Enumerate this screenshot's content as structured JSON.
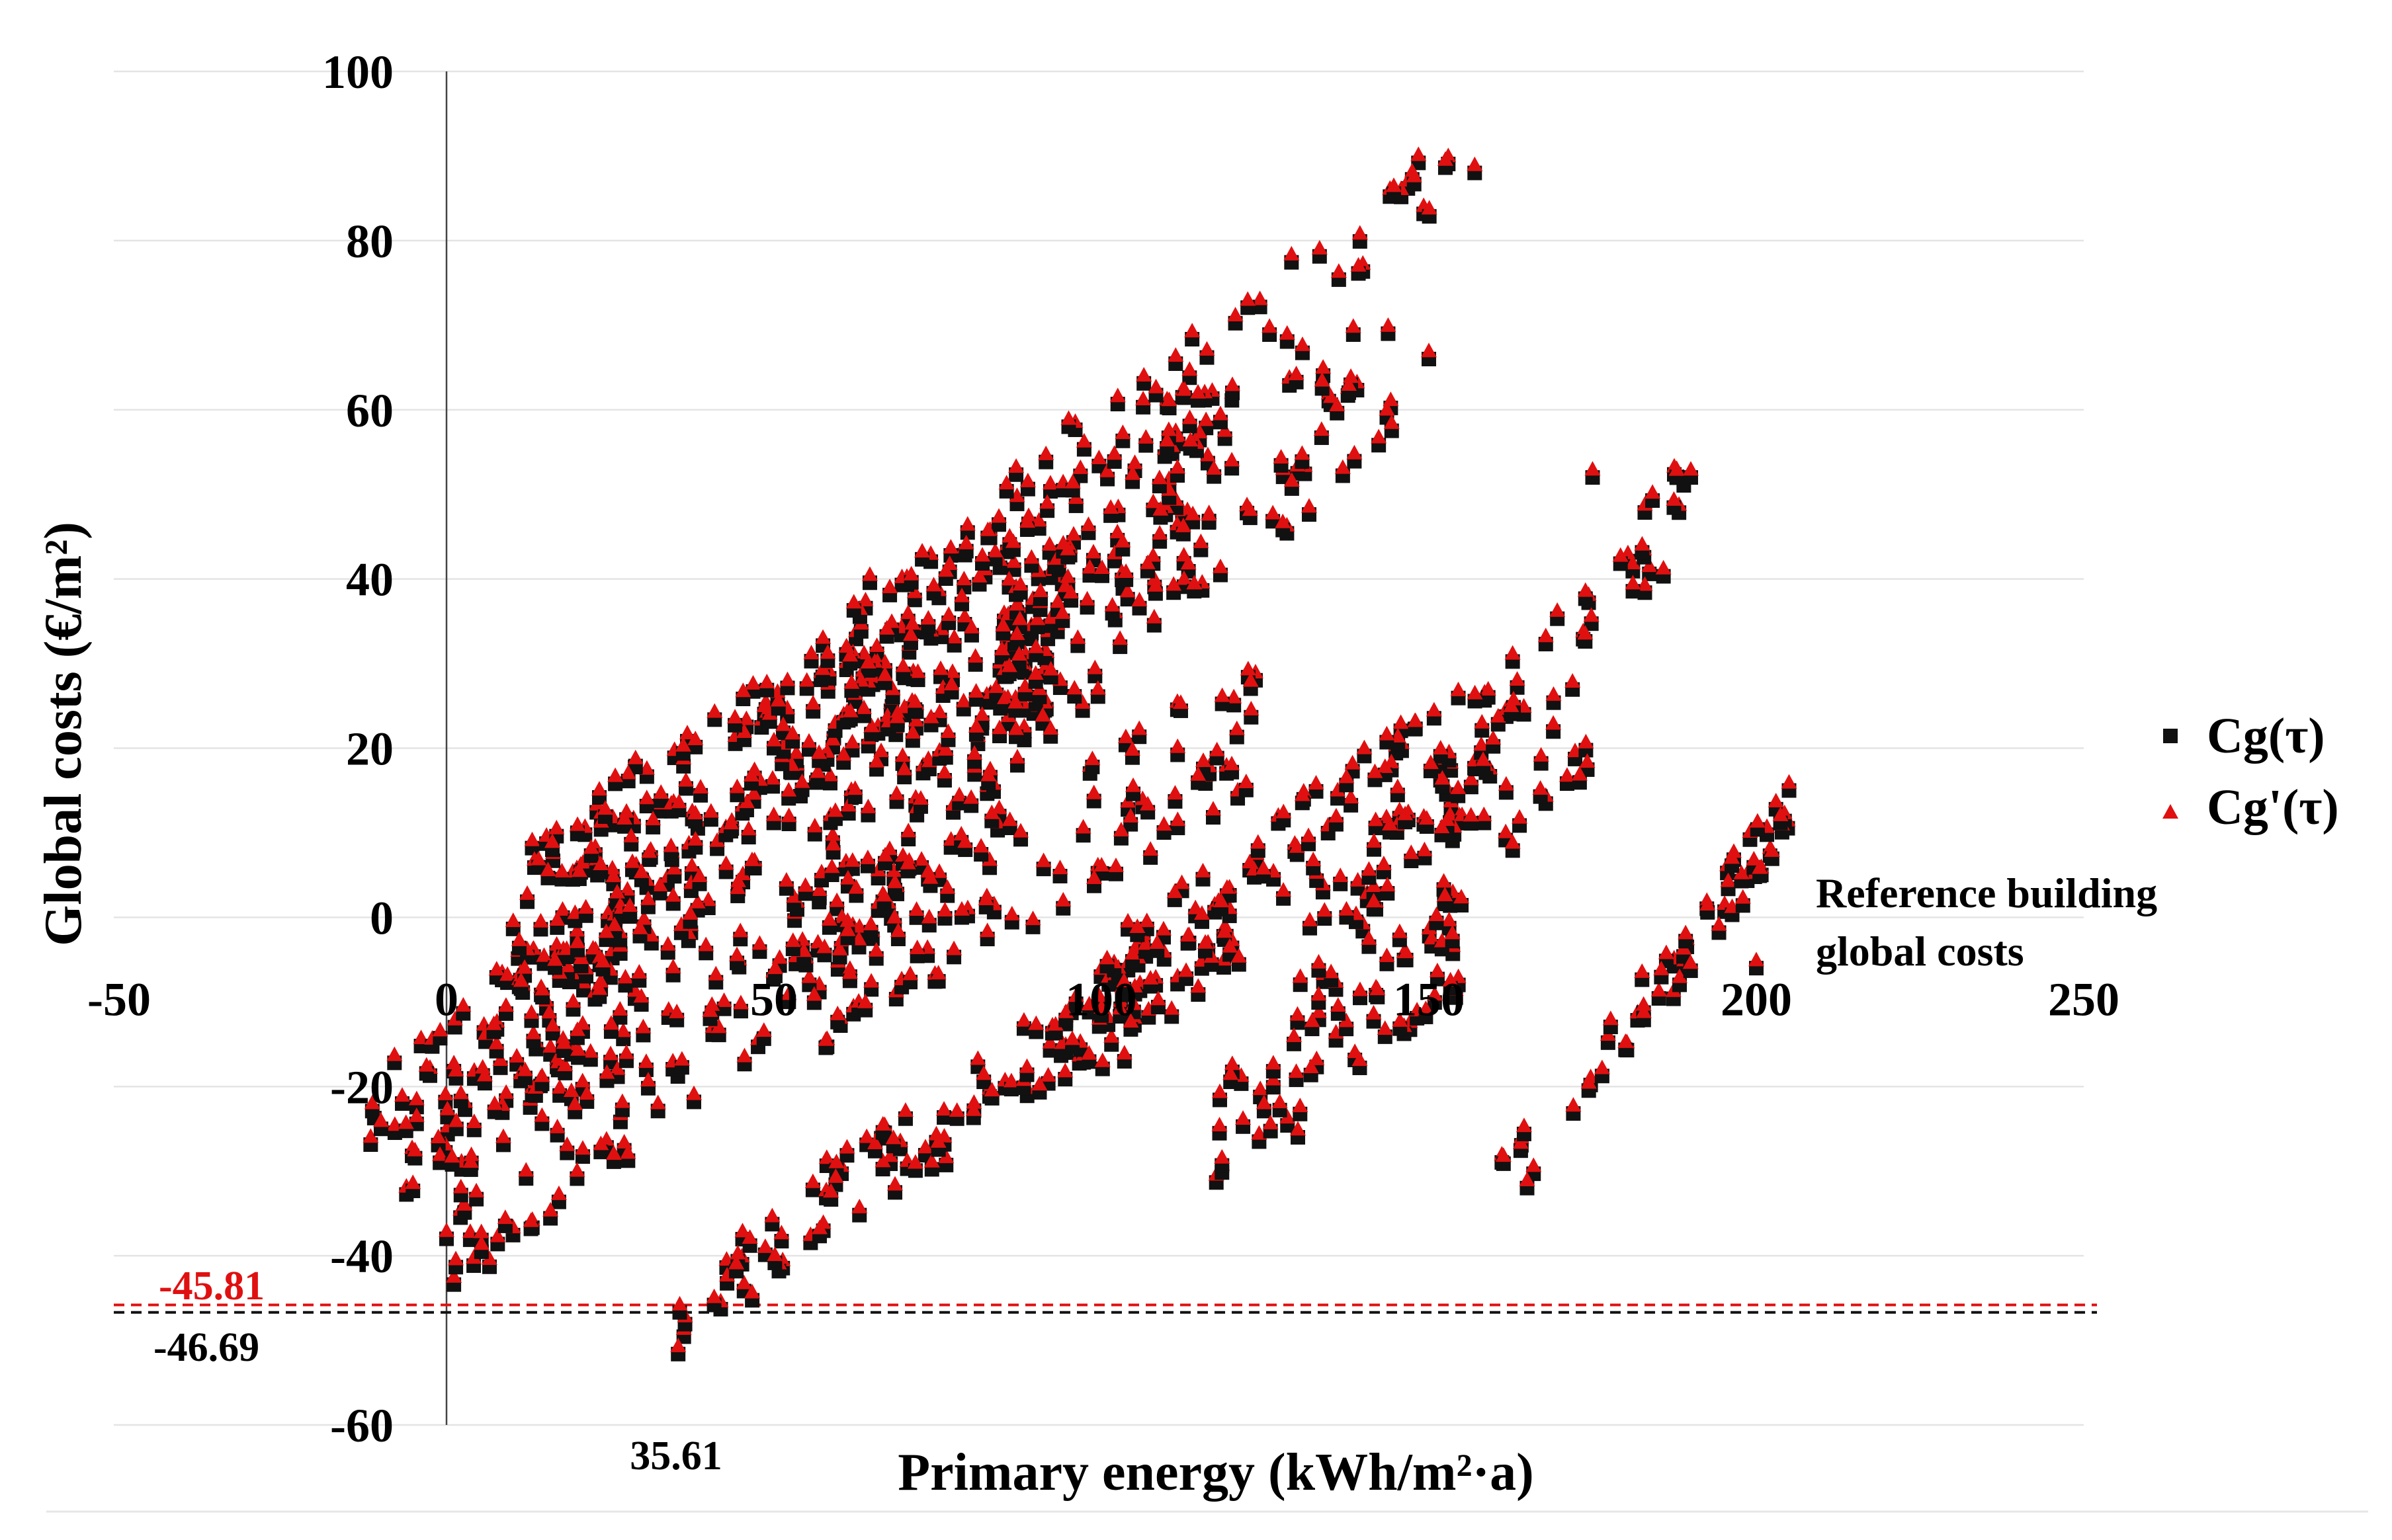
{
  "chart_data": {
    "type": "scatter",
    "xlabel": "Primary energy (kWh/m²·a)",
    "ylabel": "Global costs (€/m²)",
    "xlim": [
      -50,
      250
    ],
    "ylim": [
      -60,
      100
    ],
    "x_ticks": [
      -50,
      0,
      50,
      100,
      150,
      200,
      250
    ],
    "y_ticks": [
      -60,
      -40,
      -20,
      0,
      20,
      40,
      60,
      80,
      100
    ],
    "grid": "horizontal",
    "legend_position": "right",
    "series": [
      {
        "name": "Cg(τ)",
        "marker": "square",
        "color": "#111111",
        "offset_y": -1.0,
        "sample_points": [
          [
            35.61,
            -46.69
          ],
          [
            0,
            -38
          ],
          [
            -10,
            -25
          ],
          [
            20,
            10
          ],
          [
            50,
            20
          ],
          [
            95,
            58
          ],
          [
            120,
            62
          ],
          [
            157,
            88
          ],
          [
            150,
            66
          ],
          [
            175,
            52
          ],
          [
            190,
            52
          ],
          [
            205,
            15
          ],
          [
            200,
            -6
          ],
          [
            165,
            -32
          ],
          [
            130,
            -26
          ]
        ]
      },
      {
        "name": "Cg'(τ)",
        "marker": "triangle",
        "color": "#e01010",
        "offset_y": 0.0,
        "sample_points": [
          [
            35.61,
            -45.81
          ],
          [
            0,
            -37
          ],
          [
            -10,
            -24
          ],
          [
            20,
            11
          ],
          [
            50,
            21
          ],
          [
            95,
            59
          ],
          [
            120,
            63
          ],
          [
            157,
            89
          ],
          [
            150,
            67
          ],
          [
            175,
            53
          ],
          [
            190,
            53
          ],
          [
            205,
            16
          ],
          [
            200,
            -5
          ],
          [
            165,
            -31
          ],
          [
            130,
            -25
          ]
        ]
      }
    ],
    "clusters": [
      {
        "x": [
          -12,
          35
        ],
        "y0": -24,
        "slope": 0.64,
        "amp": 6,
        "count": 60
      },
      {
        "x": [
          -10,
          30
        ],
        "y0": -30,
        "slope": 0.5,
        "amp": 5,
        "count": 45
      },
      {
        "x": [
          0,
          85
        ],
        "y0": -38,
        "slope": 0.62,
        "amp": 7,
        "count": 110
      },
      {
        "x": [
          5,
          95
        ],
        "y0": -16,
        "slope": 0.55,
        "amp": 8,
        "count": 130
      },
      {
        "x": [
          10,
          100
        ],
        "y0": 0,
        "slope": 0.55,
        "amp": 9,
        "count": 140
      },
      {
        "x": [
          20,
          120
        ],
        "y0": 5,
        "slope": 0.5,
        "amp": 10,
        "count": 150
      },
      {
        "x": [
          35,
          120
        ],
        "y0": -46,
        "slope": 0.55,
        "amp": 5,
        "count": 120
      },
      {
        "x": [
          50,
          125
        ],
        "y0": -10,
        "slope": 0.45,
        "amp": 8,
        "count": 100
      },
      {
        "x": [
          60,
          155
        ],
        "y0": 30,
        "slope": 0.6,
        "amp": 8,
        "count": 90
      },
      {
        "x": [
          80,
          145
        ],
        "y0": 20,
        "slope": 0.7,
        "amp": 8,
        "count": 80
      },
      {
        "x": [
          100,
          160
        ],
        "y0": -10,
        "slope": 0.55,
        "amp": 8,
        "count": 90
      },
      {
        "x": [
          115,
          155
        ],
        "y0": -26,
        "slope": 0.6,
        "amp": 6,
        "count": 55
      },
      {
        "x": [
          130,
          175
        ],
        "y0": -10,
        "slope": 0.7,
        "amp": 6,
        "count": 45
      },
      {
        "x": [
          160,
          205
        ],
        "y0": -32,
        "slope": 1.0,
        "amp": 4,
        "count": 55
      },
      {
        "x": [
          140,
          190
        ],
        "y0": 5,
        "slope": 0.9,
        "amp": 6,
        "count": 55
      }
    ],
    "reference_lines": [
      {
        "value": -45.81,
        "label": "-45.81",
        "color": "#e01010",
        "style": "dashed"
      },
      {
        "value": -46.69,
        "label": "-46.69",
        "color": "#111111",
        "style": "dashed"
      }
    ],
    "annotations": {
      "x_marker_label": "35.61",
      "reference_label_line1": "Reference building",
      "reference_label_line2": "global costs"
    }
  }
}
